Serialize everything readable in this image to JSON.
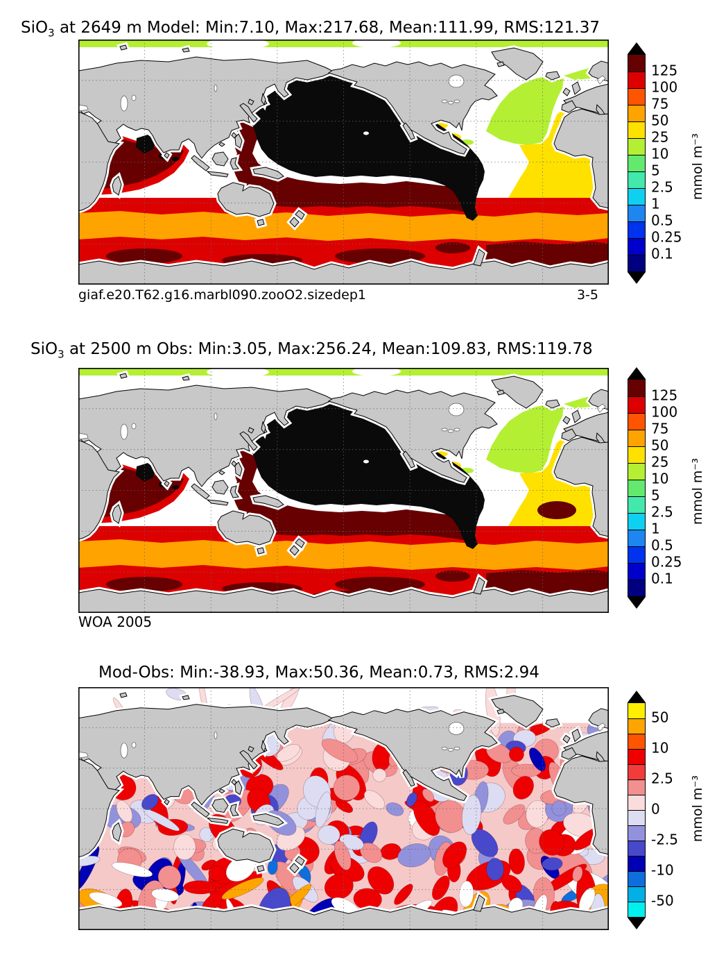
{
  "figure": {
    "background": "#ffffff",
    "land_color": "#c8c8c8",
    "coast_color": "#000000",
    "no_data_color": "#ffffff"
  },
  "panels": [
    {
      "title_prefix": "SiO",
      "title_sub": "3",
      "title_rest": " at 2649 m Model: Min:7.10, Max:217.68, Mean:111.99, RMS:121.37",
      "caption_left": "giaf.e20.T62.g16.marbl090.zooO2.sizedep1",
      "caption_right": "3-5",
      "colorbar_unit": "mmol m⁻³"
    },
    {
      "title_prefix": "SiO",
      "title_sub": "3",
      "title_rest": " at 2500 m Obs: Min:3.05, Max:256.24, Mean:109.83, RMS:119.78",
      "caption_left": "WOA 2005",
      "colorbar_unit": "mmol m⁻³"
    },
    {
      "title_rest": "Mod-Obs: Min:-38.93, Max:50.36, Mean:0.73, RMS:2.94",
      "colorbar_unit": "mmol m⁻³"
    }
  ],
  "colorbars": [
    {
      "segments": [
        "#670000",
        "#dd0000",
        "#ff5400",
        "#ffa300",
        "#ffe100",
        "#b4ef33",
        "#63e96e",
        "#43e8ad",
        "#0fd0f0",
        "#1e86f0",
        "#0033ee",
        "#0000cd",
        "#000080"
      ],
      "labels": [
        {
          "text": "125",
          "boundary": 1
        },
        {
          "text": "100",
          "boundary": 2
        },
        {
          "text": "75",
          "boundary": 3
        },
        {
          "text": "50",
          "boundary": 4
        },
        {
          "text": "25",
          "boundary": 5
        },
        {
          "text": "10",
          "boundary": 6
        },
        {
          "text": "5",
          "boundary": 7
        },
        {
          "text": "2.5",
          "boundary": 8
        },
        {
          "text": "1",
          "boundary": 9
        },
        {
          "text": "0.5",
          "boundary": 10
        },
        {
          "text": "0.25",
          "boundary": 11
        },
        {
          "text": "0.1",
          "boundary": 12
        }
      ]
    },
    {
      "segments": [
        "#670000",
        "#dd0000",
        "#ff5400",
        "#ffa300",
        "#ffe100",
        "#b4ef33",
        "#63e96e",
        "#43e8ad",
        "#0fd0f0",
        "#1e86f0",
        "#0033ee",
        "#0000cd",
        "#000080"
      ],
      "labels": [
        {
          "text": "125",
          "boundary": 1
        },
        {
          "text": "100",
          "boundary": 2
        },
        {
          "text": "75",
          "boundary": 3
        },
        {
          "text": "50",
          "boundary": 4
        },
        {
          "text": "25",
          "boundary": 5
        },
        {
          "text": "10",
          "boundary": 6
        },
        {
          "text": "5",
          "boundary": 7
        },
        {
          "text": "2.5",
          "boundary": 8
        },
        {
          "text": "1",
          "boundary": 9
        },
        {
          "text": "0.5",
          "boundary": 10
        },
        {
          "text": "0.25",
          "boundary": 11
        },
        {
          "text": "0.1",
          "boundary": 12
        }
      ]
    },
    {
      "segments": [
        "#ffee00",
        "#ffa500",
        "#ff5400",
        "#ee0000",
        "#f23b3b",
        "#f28f8f",
        "#fadcdc",
        "#dcdcf2",
        "#9292dc",
        "#4848cc",
        "#0000b4",
        "#0e6edc",
        "#00b0e6",
        "#00f0f0"
      ],
      "labels": [
        {
          "text": "50",
          "boundary": 1
        },
        {
          "text": "10",
          "boundary": 3
        },
        {
          "text": "2.5",
          "boundary": 5
        },
        {
          "text": "0",
          "boundary": 7
        },
        {
          "text": "-2.5",
          "boundary": 9
        },
        {
          "text": "-10",
          "boundary": 11
        },
        {
          "text": "-50",
          "boundary": 13
        }
      ]
    }
  ],
  "chart_data": [
    {
      "type": "heatmap",
      "subtype": "global-map-filled-contours",
      "title": "SiO3 at 2649 m Model",
      "field": "SiO3",
      "depth_m": 2649,
      "source": "Model",
      "stats": {
        "min": 7.1,
        "max": 217.68,
        "mean": 111.99,
        "rms": 121.37
      },
      "units": "mmol m-3",
      "contour_levels": [
        0.1,
        0.25,
        0.5,
        1,
        2.5,
        5,
        10,
        25,
        50,
        75,
        100,
        125
      ],
      "legend_position": "right",
      "annotation_left": "giaf.e20.T62.g16.marbl090.zooO2.sizedep1",
      "annotation_right": "3-5",
      "grid": "dotted lat/lon graticule"
    },
    {
      "type": "heatmap",
      "subtype": "global-map-filled-contours",
      "title": "SiO3 at 2500 m Obs",
      "field": "SiO3",
      "depth_m": 2500,
      "source": "Obs",
      "stats": {
        "min": 3.05,
        "max": 256.24,
        "mean": 109.83,
        "rms": 119.78
      },
      "units": "mmol m-3",
      "contour_levels": [
        0.1,
        0.25,
        0.5,
        1,
        2.5,
        5,
        10,
        25,
        50,
        75,
        100,
        125
      ],
      "legend_position": "right",
      "annotation_left": "WOA 2005",
      "grid": "dotted lat/lon graticule"
    },
    {
      "type": "heatmap",
      "subtype": "global-map-filled-contours",
      "title": "Mod-Obs",
      "field": "SiO3 difference",
      "stats": {
        "min": -38.93,
        "max": 50.36,
        "mean": 0.73,
        "rms": 2.94
      },
      "units": "mmol m-3",
      "contour_levels": [
        -50,
        -25,
        -10,
        -5,
        -2.5,
        -1,
        0,
        1,
        2.5,
        5,
        10,
        25,
        50
      ],
      "legend_position": "right",
      "grid": "dotted lat/lon graticule"
    }
  ]
}
